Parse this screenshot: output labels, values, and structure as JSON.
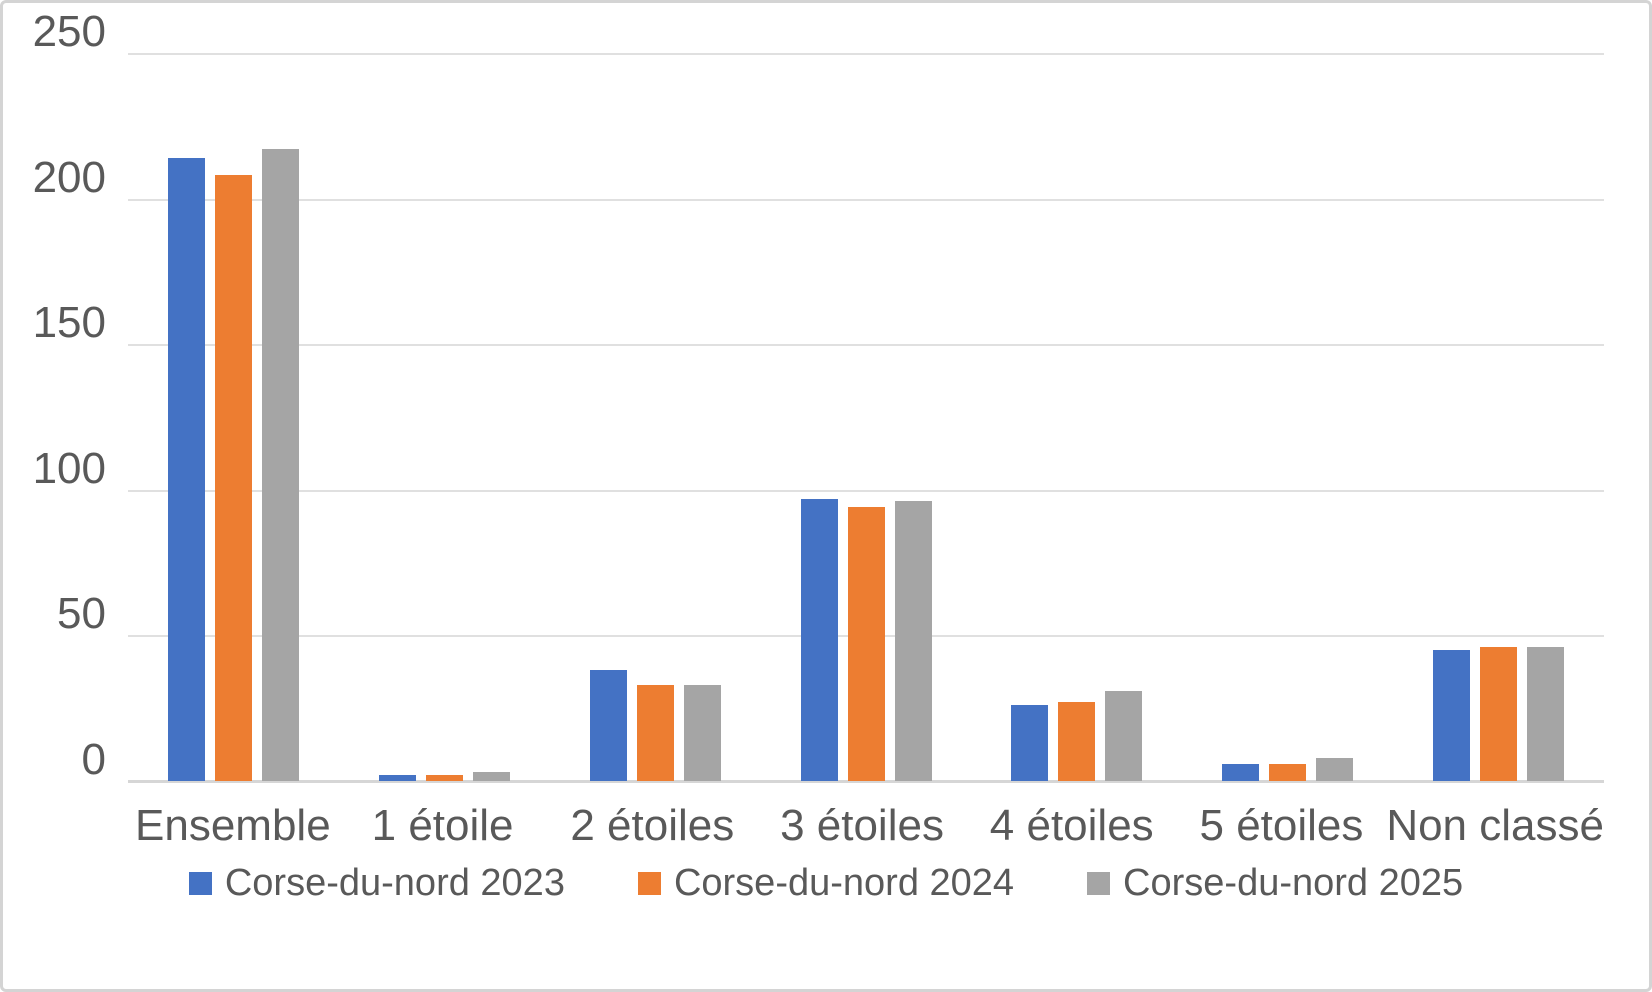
{
  "chart_data": {
    "type": "bar",
    "title": "",
    "categories": [
      "Ensemble",
      "1 étoile",
      "2 étoiles",
      "3 étoiles",
      "4 étoiles",
      "5 étoiles",
      "Non classé"
    ],
    "series": [
      {
        "name": "Corse-du-nord 2023",
        "color": "#4472C4",
        "values": [
          214,
          2,
          38,
          97,
          26,
          6,
          45
        ]
      },
      {
        "name": "Corse-du-nord 2024",
        "color": "#ED7D31",
        "values": [
          208,
          2,
          33,
          94,
          27,
          6,
          46
        ]
      },
      {
        "name": "Corse-du-nord 2025",
        "color": "#A5A5A5",
        "values": [
          217,
          3,
          33,
          96,
          31,
          8,
          46
        ]
      }
    ],
    "xlabel": "",
    "ylabel": "",
    "ylim": [
      0,
      250
    ],
    "yticks": [
      0,
      50,
      100,
      150,
      200,
      250
    ],
    "grid": true,
    "legend_position": "bottom",
    "axis_text_color": "#595959",
    "gridline_color": "#E0E0E0",
    "background_color": "#FFFFFF"
  }
}
